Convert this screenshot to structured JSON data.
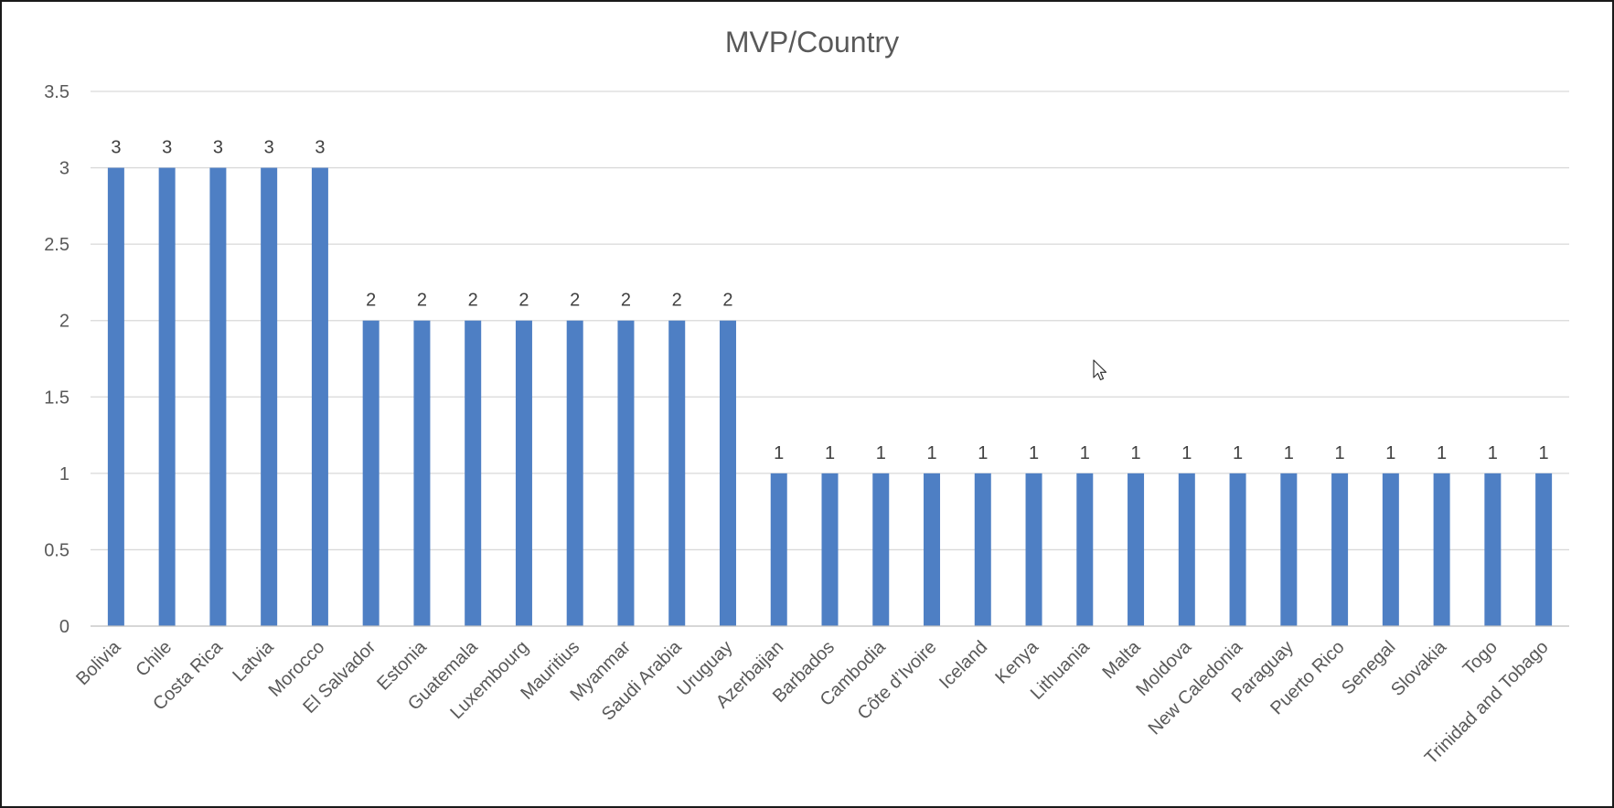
{
  "chart_data": {
    "type": "bar",
    "title": "MVP/Country",
    "xlabel": "",
    "ylabel": "",
    "ylim": [
      0,
      3.5
    ],
    "yticks": [
      0,
      0.5,
      1,
      1.5,
      2,
      2.5,
      3,
      3.5
    ],
    "ytick_labels": [
      "0",
      "0.5",
      "1",
      "1.5",
      "2",
      "2.5",
      "3",
      "3.5"
    ],
    "grid": true,
    "legend": "none",
    "bar_color": "#4E7FC4",
    "categories": [
      "Bolivia",
      "Chile",
      "Costa Rica",
      "Latvia",
      "Morocco",
      "El Salvador",
      "Estonia",
      "Guatemala",
      "Luxembourg",
      "Mauritius",
      "Myanmar",
      "Saudi Arabia",
      "Uruguay",
      "Azerbaijan",
      "Barbados",
      "Cambodia",
      "Côte d’Ivoire",
      "Iceland",
      "Kenya",
      "Lithuania",
      "Malta",
      "Moldova",
      "New Caledonia",
      "Paraguay",
      "Puerto Rico",
      "Senegal",
      "Slovakia",
      "Togo",
      "Trinidad and Tobago"
    ],
    "values": [
      3,
      3,
      3,
      3,
      3,
      2,
      2,
      2,
      2,
      2,
      2,
      2,
      2,
      1,
      1,
      1,
      1,
      1,
      1,
      1,
      1,
      1,
      1,
      1,
      1,
      1,
      1,
      1,
      1
    ],
    "data_labels": [
      "3",
      "3",
      "3",
      "3",
      "3",
      "2",
      "2",
      "2",
      "2",
      "2",
      "2",
      "2",
      "2",
      "1",
      "1",
      "1",
      "1",
      "1",
      "1",
      "1",
      "1",
      "1",
      "1",
      "1",
      "1",
      "1",
      "1",
      "1",
      "1"
    ]
  },
  "cursor": {
    "icon": "mouse-pointer-icon"
  }
}
